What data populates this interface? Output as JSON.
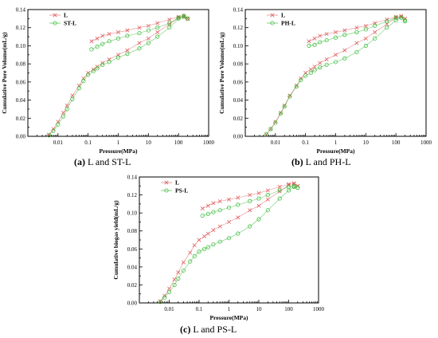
{
  "colors": {
    "red": "#e06060",
    "green": "#2fb82f",
    "axis": "#000000"
  },
  "chart_data": [
    {
      "type": "scatter",
      "caption_letter": "(a)",
      "caption_text": " L and ST-L",
      "xlabel": "Pressure(MPa)",
      "ylabel": "Cumulative Pore Volume(mL/g)",
      "xscale": "log",
      "xlim": [
        0.001,
        1000
      ],
      "ylim": [
        0,
        0.14
      ],
      "xticks": [
        0.01,
        0.1,
        1,
        10,
        100,
        1000
      ],
      "xtick_labels": [
        "0.01",
        "0.1",
        "1",
        "10",
        "100",
        "1000"
      ],
      "yticks": [
        0,
        0.02,
        0.04,
        0.06,
        0.08,
        0.1,
        0.12,
        0.14
      ],
      "ytick_labels": [
        "0.00",
        "0.02",
        "0.04",
        "0.06",
        "0.08",
        "0.10",
        "0.12",
        "0.14"
      ],
      "legend_position": "top-left",
      "series": [
        {
          "name": "L",
          "marker": "x",
          "color": "#e06060",
          "intrusion": [
            [
              0.005,
              0.002
            ],
            [
              0.007,
              0.008
            ],
            [
              0.01,
              0.016
            ],
            [
              0.015,
              0.026
            ],
            [
              0.02,
              0.034
            ],
            [
              0.03,
              0.045
            ],
            [
              0.05,
              0.056
            ],
            [
              0.07,
              0.064
            ],
            [
              0.1,
              0.07
            ],
            [
              0.15,
              0.074
            ],
            [
              0.2,
              0.077
            ],
            [
              0.3,
              0.081
            ],
            [
              0.5,
              0.085
            ],
            [
              1,
              0.09
            ],
            [
              2,
              0.095
            ],
            [
              5,
              0.103
            ],
            [
              10,
              0.108
            ],
            [
              20,
              0.115
            ],
            [
              50,
              0.124
            ],
            [
              100,
              0.131
            ],
            [
              150,
              0.133
            ],
            [
              200,
              0.13
            ]
          ],
          "extrusion": [
            [
              200,
              0.13
            ],
            [
              150,
              0.132
            ],
            [
              100,
              0.132
            ],
            [
              50,
              0.129
            ],
            [
              20,
              0.125
            ],
            [
              10,
              0.122
            ],
            [
              5,
              0.12
            ],
            [
              2,
              0.117
            ],
            [
              1,
              0.115
            ],
            [
              0.5,
              0.113
            ],
            [
              0.3,
              0.111
            ],
            [
              0.2,
              0.108
            ],
            [
              0.13,
              0.105
            ]
          ]
        },
        {
          "name": "ST-L",
          "marker": "o",
          "color": "#2fb82f",
          "intrusion": [
            [
              0.005,
              0.001
            ],
            [
              0.007,
              0.006
            ],
            [
              0.01,
              0.013
            ],
            [
              0.015,
              0.022
            ],
            [
              0.02,
              0.03
            ],
            [
              0.03,
              0.041
            ],
            [
              0.05,
              0.053
            ],
            [
              0.07,
              0.061
            ],
            [
              0.1,
              0.068
            ],
            [
              0.15,
              0.072
            ],
            [
              0.2,
              0.075
            ],
            [
              0.3,
              0.079
            ],
            [
              0.5,
              0.082
            ],
            [
              1,
              0.087
            ],
            [
              2,
              0.091
            ],
            [
              5,
              0.097
            ],
            [
              10,
              0.103
            ],
            [
              20,
              0.11
            ],
            [
              50,
              0.12
            ],
            [
              100,
              0.13
            ],
            [
              150,
              0.133
            ],
            [
              200,
              0.13
            ]
          ],
          "extrusion": [
            [
              200,
              0.13
            ],
            [
              150,
              0.132
            ],
            [
              100,
              0.131
            ],
            [
              50,
              0.125
            ],
            [
              20,
              0.12
            ],
            [
              10,
              0.117
            ],
            [
              5,
              0.114
            ],
            [
              2,
              0.111
            ],
            [
              1,
              0.108
            ],
            [
              0.5,
              0.105
            ],
            [
              0.3,
              0.102
            ],
            [
              0.2,
              0.099
            ],
            [
              0.13,
              0.096
            ]
          ]
        }
      ]
    },
    {
      "type": "scatter",
      "caption_letter": "(b)",
      "caption_text": " L and PH-L",
      "xlabel": "Pressure(MPa)",
      "ylabel": "Cumulative Pore Volume(mL/g)",
      "xscale": "log",
      "xlim": [
        0.001,
        1000
      ],
      "ylim": [
        0,
        0.14
      ],
      "xticks": [
        0.01,
        0.1,
        1,
        10,
        100,
        1000
      ],
      "xtick_labels": [
        "0.01",
        "0.1",
        "1",
        "10",
        "100",
        "1000"
      ],
      "yticks": [
        0,
        0.02,
        0.04,
        0.06,
        0.08,
        0.1,
        0.12,
        0.14
      ],
      "ytick_labels": [
        "0.00",
        "0.02",
        "0.04",
        "0.06",
        "0.08",
        "0.10",
        "0.12",
        "0.14"
      ],
      "legend_position": "top-left",
      "series": [
        {
          "name": "L",
          "marker": "x",
          "color": "#e06060",
          "intrusion": [
            [
              0.005,
              0.002
            ],
            [
              0.007,
              0.008
            ],
            [
              0.01,
              0.016
            ],
            [
              0.015,
              0.026
            ],
            [
              0.02,
              0.034
            ],
            [
              0.03,
              0.045
            ],
            [
              0.05,
              0.056
            ],
            [
              0.07,
              0.064
            ],
            [
              0.1,
              0.07
            ],
            [
              0.15,
              0.074
            ],
            [
              0.2,
              0.077
            ],
            [
              0.3,
              0.081
            ],
            [
              0.5,
              0.085
            ],
            [
              1,
              0.09
            ],
            [
              2,
              0.095
            ],
            [
              5,
              0.103
            ],
            [
              10,
              0.108
            ],
            [
              20,
              0.115
            ],
            [
              50,
              0.124
            ],
            [
              100,
              0.131
            ],
            [
              150,
              0.133
            ],
            [
              200,
              0.13
            ]
          ],
          "extrusion": [
            [
              200,
              0.13
            ],
            [
              150,
              0.132
            ],
            [
              100,
              0.132
            ],
            [
              50,
              0.129
            ],
            [
              20,
              0.125
            ],
            [
              10,
              0.122
            ],
            [
              5,
              0.12
            ],
            [
              2,
              0.117
            ],
            [
              1,
              0.115
            ],
            [
              0.5,
              0.113
            ],
            [
              0.3,
              0.111
            ],
            [
              0.2,
              0.108
            ],
            [
              0.13,
              0.105
            ]
          ]
        },
        {
          "name": "PH-L",
          "marker": "o",
          "color": "#2fb82f",
          "intrusion": [
            [
              0.005,
              0.002
            ],
            [
              0.007,
              0.008
            ],
            [
              0.01,
              0.015
            ],
            [
              0.015,
              0.025
            ],
            [
              0.02,
              0.033
            ],
            [
              0.03,
              0.044
            ],
            [
              0.05,
              0.055
            ],
            [
              0.07,
              0.062
            ],
            [
              0.1,
              0.067
            ],
            [
              0.15,
              0.07
            ],
            [
              0.2,
              0.073
            ],
            [
              0.3,
              0.076
            ],
            [
              0.5,
              0.079
            ],
            [
              1,
              0.082
            ],
            [
              2,
              0.086
            ],
            [
              5,
              0.093
            ],
            [
              10,
              0.1
            ],
            [
              20,
              0.108
            ],
            [
              50,
              0.12
            ],
            [
              100,
              0.128
            ],
            [
              150,
              0.131
            ],
            [
              200,
              0.128
            ]
          ],
          "extrusion": [
            [
              200,
              0.127
            ],
            [
              150,
              0.131
            ],
            [
              100,
              0.131
            ],
            [
              50,
              0.127
            ],
            [
              20,
              0.122
            ],
            [
              10,
              0.118
            ],
            [
              5,
              0.115
            ],
            [
              2,
              0.112
            ],
            [
              1,
              0.109
            ],
            [
              0.5,
              0.106
            ],
            [
              0.3,
              0.104
            ],
            [
              0.2,
              0.101
            ],
            [
              0.13,
              0.1
            ]
          ]
        }
      ]
    },
    {
      "type": "scatter",
      "caption_letter": "(c)",
      "caption_text": " L and PS-L",
      "xlabel": "Pressure(MPa)",
      "ylabel": "Cumulative biogas yield(mL/g)",
      "xscale": "log",
      "xlim": [
        0.001,
        1000
      ],
      "ylim": [
        0,
        0.14
      ],
      "xticks": [
        0.01,
        0.1,
        1,
        10,
        100,
        1000
      ],
      "xtick_labels": [
        "0.01",
        "0.1",
        "1",
        "10",
        "100",
        "1000"
      ],
      "yticks": [
        0,
        0.02,
        0.04,
        0.06,
        0.08,
        0.1,
        0.12,
        0.14
      ],
      "ytick_labels": [
        "0.00",
        "0.02",
        "0.04",
        "0.06",
        "0.08",
        "0.10",
        "0.12",
        "0.14"
      ],
      "legend_position": "top-left",
      "series": [
        {
          "name": "L",
          "marker": "x",
          "color": "#e06060",
          "intrusion": [
            [
              0.005,
              0.002
            ],
            [
              0.007,
              0.008
            ],
            [
              0.01,
              0.016
            ],
            [
              0.015,
              0.026
            ],
            [
              0.02,
              0.034
            ],
            [
              0.03,
              0.045
            ],
            [
              0.05,
              0.056
            ],
            [
              0.07,
              0.064
            ],
            [
              0.1,
              0.07
            ],
            [
              0.15,
              0.074
            ],
            [
              0.2,
              0.077
            ],
            [
              0.3,
              0.081
            ],
            [
              0.5,
              0.085
            ],
            [
              1,
              0.09
            ],
            [
              2,
              0.095
            ],
            [
              5,
              0.103
            ],
            [
              10,
              0.108
            ],
            [
              20,
              0.115
            ],
            [
              50,
              0.124
            ],
            [
              100,
              0.131
            ],
            [
              150,
              0.133
            ],
            [
              200,
              0.13
            ]
          ],
          "extrusion": [
            [
              200,
              0.13
            ],
            [
              150,
              0.132
            ],
            [
              100,
              0.132
            ],
            [
              50,
              0.129
            ],
            [
              20,
              0.125
            ],
            [
              10,
              0.122
            ],
            [
              5,
              0.12
            ],
            [
              2,
              0.117
            ],
            [
              1,
              0.115
            ],
            [
              0.5,
              0.113
            ],
            [
              0.3,
              0.111
            ],
            [
              0.2,
              0.108
            ],
            [
              0.13,
              0.105
            ]
          ]
        },
        {
          "name": "PS-L",
          "marker": "o",
          "color": "#2fb82f",
          "intrusion": [
            [
              0.005,
              0.001
            ],
            [
              0.007,
              0.006
            ],
            [
              0.01,
              0.012
            ],
            [
              0.015,
              0.02
            ],
            [
              0.02,
              0.027
            ],
            [
              0.03,
              0.036
            ],
            [
              0.05,
              0.046
            ],
            [
              0.07,
              0.052
            ],
            [
              0.1,
              0.057
            ],
            [
              0.15,
              0.06
            ],
            [
              0.2,
              0.062
            ],
            [
              0.3,
              0.065
            ],
            [
              0.5,
              0.068
            ],
            [
              1,
              0.072
            ],
            [
              2,
              0.077
            ],
            [
              5,
              0.085
            ],
            [
              10,
              0.093
            ],
            [
              20,
              0.103
            ],
            [
              50,
              0.116
            ],
            [
              100,
              0.125
            ],
            [
              150,
              0.129
            ],
            [
              200,
              0.128
            ]
          ],
          "extrusion": [
            [
              200,
              0.128
            ],
            [
              150,
              0.13
            ],
            [
              100,
              0.129
            ],
            [
              50,
              0.125
            ],
            [
              20,
              0.12
            ],
            [
              10,
              0.116
            ],
            [
              5,
              0.113
            ],
            [
              2,
              0.109
            ],
            [
              1,
              0.106
            ],
            [
              0.5,
              0.103
            ],
            [
              0.3,
              0.101
            ],
            [
              0.2,
              0.099
            ],
            [
              0.13,
              0.097
            ]
          ]
        }
      ]
    }
  ]
}
